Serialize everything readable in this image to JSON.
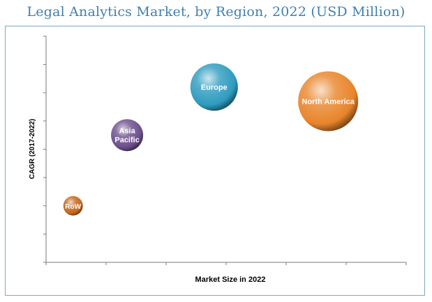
{
  "chart_data": {
    "type": "scatter",
    "title": "Legal Analytics Market, by Region, 2022 (USD Million)",
    "xlabel": "Market Size in 2022",
    "ylabel": "CAGR (2017-2022)",
    "grid": false,
    "x_tick_labels": false,
    "y_tick_labels": false,
    "series": [
      {
        "name": "Europe",
        "label_lines": [
          "Europe"
        ],
        "x": 5.6,
        "y": 6.2,
        "size": 34,
        "color": "#2e9bbf"
      },
      {
        "name": "North America",
        "label_lines": [
          "North America"
        ],
        "x": 9.4,
        "y": 5.7,
        "size": 43,
        "color": "#e8842b"
      },
      {
        "name": "Asia Pacific",
        "label_lines": [
          "Asia",
          "Pacific"
        ],
        "x": 2.7,
        "y": 4.5,
        "size": 23,
        "color": "#6b4e8c"
      },
      {
        "name": "RoW",
        "label_lines": [
          "RoW"
        ],
        "x": 0.9,
        "y": 2.0,
        "size": 14,
        "color": "#c4651a"
      }
    ]
  }
}
